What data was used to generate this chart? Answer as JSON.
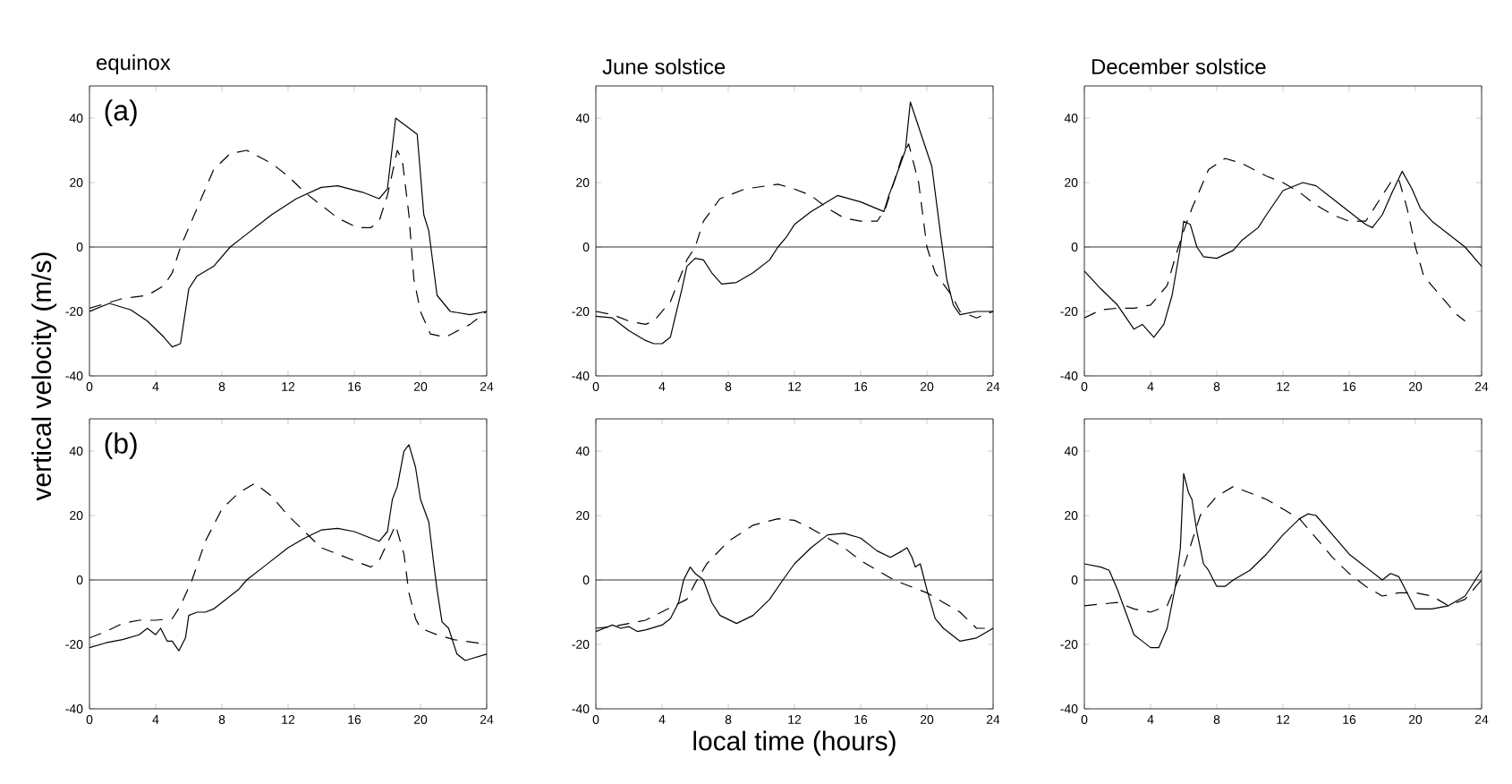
{
  "chart_data": [
    {
      "type": "line",
      "title": "equinox",
      "ylabel": "vertical velocity (m/s)",
      "annotations": [
        "(a)"
      ],
      "xlim": [
        0,
        24
      ],
      "ylim": [
        -40,
        50
      ],
      "xticks": [
        0,
        4,
        8,
        12,
        16,
        20,
        24
      ],
      "yticks": [
        -40,
        -20,
        0,
        20,
        40
      ],
      "ref_lines": [
        {
          "axis": "y",
          "value": 0
        }
      ],
      "series": [
        {
          "color": "#000000",
          "line_style": "solid",
          "x": [
            0,
            1.2,
            2.5,
            3.5,
            4.5,
            5.0,
            5.5,
            6.0,
            6.5,
            7.5,
            8.5,
            9.5,
            11,
            12.5,
            14,
            15,
            16.5,
            17.5,
            18,
            18.5,
            18.8,
            19.3,
            19.8,
            20.2,
            20.5,
            21,
            21.8,
            23,
            24
          ],
          "values": [
            -20,
            -17.5,
            -19.5,
            -23,
            -28,
            -31,
            -30,
            -13,
            -9,
            -6,
            0,
            4,
            10,
            15,
            18.5,
            19,
            17,
            15,
            18,
            40,
            null,
            null,
            35,
            10,
            5,
            -15,
            -20,
            -21,
            -20
          ]
        },
        {
          "color": "#000000",
          "line_style": "dashed",
          "x": [
            0,
            2,
            3.5,
            4.5,
            5.0,
            5.5,
            6.5,
            7.5,
            8.5,
            9.5,
            11,
            12,
            13,
            14,
            15,
            16.2,
            17,
            17.5,
            18,
            18.6,
            18.9,
            19.3,
            19.6,
            20,
            20.6,
            21.5,
            23,
            24
          ],
          "values": [
            -19,
            -16,
            -15,
            -12,
            -8,
            0,
            12,
            24,
            29,
            30,
            26,
            22,
            17,
            13,
            9,
            6,
            6,
            8,
            16,
            30,
            27,
            10,
            -10,
            -20,
            -27,
            -28,
            -24,
            -20
          ]
        }
      ]
    },
    {
      "type": "line",
      "title": "June solstice",
      "xlim": [
        0,
        24
      ],
      "ylim": [
        -40,
        50
      ],
      "xticks": [
        0,
        4,
        8,
        12,
        16,
        20,
        24
      ],
      "yticks": [
        -40,
        -20,
        0,
        20,
        40
      ],
      "ref_lines": [
        {
          "axis": "y",
          "value": 0
        }
      ],
      "series": [
        {
          "color": "#000000",
          "line_style": "solid",
          "x": [
            0,
            1,
            2,
            3,
            3.5,
            4,
            4.5,
            5.2,
            5.5,
            6,
            6.5,
            7,
            7.6,
            8.5,
            9.5,
            10.5,
            11,
            11.5,
            12,
            13,
            14.6,
            16,
            17.4,
            17.7,
            18,
            18.7,
            19,
            19.3,
            19.8,
            20.3,
            20.8,
            21.2,
            21.6,
            22,
            23,
            24
          ],
          "values": [
            -21.5,
            -22,
            -26,
            -29,
            -30,
            -30,
            -28,
            -13,
            -6,
            -3.5,
            -4,
            -8,
            -11.5,
            -11,
            -8,
            -4,
            0,
            3,
            7,
            11,
            16,
            14,
            11,
            16,
            20,
            30,
            45,
            null,
            null,
            25,
            5,
            -10,
            -18,
            -21,
            -20,
            -20
          ]
        },
        {
          "color": "#000000",
          "line_style": "dashed",
          "x": [
            0,
            1,
            2,
            3,
            3.5,
            4.5,
            5.5,
            6,
            6.5,
            7.5,
            9,
            11,
            12,
            13,
            14,
            15,
            16,
            17,
            17.5,
            18,
            18.5,
            18.9,
            19.5,
            20,
            20.5,
            21.5,
            22,
            23,
            24
          ],
          "values": [
            -20,
            -21,
            -23,
            -24,
            -23,
            -17,
            -4,
            0,
            8,
            15,
            18,
            19.5,
            18,
            16,
            12,
            9,
            8,
            8,
            12,
            20,
            28,
            32,
            20,
            0,
            -8,
            -15,
            -20,
            -22,
            -20
          ]
        }
      ]
    },
    {
      "type": "line",
      "title": "December solstice",
      "xlim": [
        0,
        24
      ],
      "ylim": [
        -40,
        50
      ],
      "xticks": [
        0,
        4,
        8,
        12,
        16,
        20,
        24
      ],
      "yticks": [
        -40,
        -20,
        0,
        20,
        40
      ],
      "ref_lines": [
        {
          "axis": "y",
          "value": 0
        }
      ],
      "series": [
        {
          "color": "#000000",
          "line_style": "solid",
          "x": [
            0,
            1,
            2,
            3,
            3.5,
            4.2,
            4.8,
            5.3,
            5.8,
            6.0,
            6.4,
            6.8,
            7.2,
            8,
            9,
            9.5,
            10.5,
            11,
            12,
            13.2,
            14,
            15,
            16,
            17,
            17.4,
            18,
            18.6,
            19.2,
            19.8,
            20.3,
            21,
            22,
            23,
            24
          ],
          "values": [
            -7.5,
            -13,
            -18,
            -25.5,
            -24,
            -28,
            -24,
            -15,
            0,
            8,
            7,
            0,
            -3,
            -3.5,
            -1,
            2,
            6,
            10,
            17.5,
            20,
            19,
            15,
            11,
            7,
            6,
            10,
            17,
            23.5,
            18,
            12,
            8,
            4,
            0,
            -6
          ]
        },
        {
          "color": "#000000",
          "line_style": "dashed",
          "x": [
            0,
            1,
            2,
            3,
            4,
            5,
            5.5,
            6,
            6.5,
            7.5,
            8.5,
            9.5,
            11,
            12,
            13,
            14,
            15,
            16,
            17,
            17.5,
            18,
            18.5,
            19,
            19.5,
            20,
            20.5,
            21.5,
            22.5,
            23
          ],
          "values": [
            -22,
            -19.5,
            -19,
            -19,
            -18,
            -12,
            -3,
            5,
            12,
            24,
            27.5,
            26,
            22,
            20,
            17,
            13,
            10,
            8,
            8,
            12,
            16,
            20,
            21,
            12,
            0,
            -9,
            -15,
            -21,
            -23
          ]
        }
      ]
    },
    {
      "type": "line",
      "annotations": [
        "(b)"
      ],
      "xlim": [
        0,
        24
      ],
      "ylim": [
        -40,
        50
      ],
      "xticks": [
        0,
        4,
        8,
        12,
        16,
        20,
        24
      ],
      "yticks": [
        -40,
        -20,
        0,
        20,
        40
      ],
      "ref_lines": [
        {
          "axis": "y",
          "value": 0
        }
      ],
      "series": [
        {
          "color": "#000000",
          "line_style": "solid",
          "x": [
            0,
            1,
            2,
            3,
            3.5,
            4,
            4.3,
            4.7,
            5,
            5.4,
            5.8,
            6,
            6.5,
            7,
            7.5,
            8,
            9,
            9.5,
            10.5,
            12,
            13,
            14,
            15,
            16,
            17,
            17.5,
            18,
            18.3,
            18.6,
            19,
            19.3,
            19.7,
            20,
            20.5,
            20.8,
            21,
            21.3,
            21.7,
            22.2,
            22.7,
            24
          ],
          "values": [
            -21,
            -19.5,
            -18.5,
            -17,
            -15,
            -17,
            -15,
            -19,
            -19,
            -22,
            -18,
            -11,
            -10,
            -10,
            -9,
            -7,
            -3,
            0,
            4,
            10,
            13,
            15.5,
            16,
            15,
            13,
            12,
            15,
            25,
            29,
            40,
            42,
            35,
            25,
            18,
            5,
            -3,
            -13,
            -15,
            -23,
            -25,
            -23
          ]
        },
        {
          "color": "#000000",
          "line_style": "dashed",
          "x": [
            0,
            1,
            2,
            3,
            4,
            5,
            5.5,
            6.2,
            7,
            8,
            9,
            10,
            11,
            12,
            13,
            14,
            15,
            16,
            17,
            17.5,
            18.5,
            19,
            19.3,
            19.7,
            20,
            21,
            22,
            24
          ],
          "values": [
            -18,
            -16,
            -13.5,
            -12.5,
            -12.5,
            -12,
            -8,
            0,
            12,
            22,
            27,
            30,
            26,
            20,
            15,
            10,
            8,
            6,
            4,
            6,
            17,
            8,
            -4,
            -12,
            -15,
            -17,
            -18.5,
            -20
          ]
        }
      ]
    },
    {
      "type": "line",
      "xlabel": "local time (hours)",
      "xlim": [
        0,
        24
      ],
      "ylim": [
        -40,
        50
      ],
      "xticks": [
        0,
        4,
        8,
        12,
        16,
        20,
        24
      ],
      "yticks": [
        -40,
        -20,
        0,
        20,
        40
      ],
      "ref_lines": [
        {
          "axis": "y",
          "value": 0
        }
      ],
      "series": [
        {
          "color": "#000000",
          "line_style": "solid",
          "x": [
            0,
            0.5,
            1,
            1.5,
            2,
            2.5,
            3,
            4,
            4.5,
            5,
            5.3,
            5.7,
            6,
            6.5,
            7,
            7.5,
            8.5,
            9.5,
            10.5,
            11.3,
            12,
            13,
            14,
            15,
            16,
            17,
            17.8,
            18.5,
            18.8,
            19.1,
            19.3,
            19.6,
            20,
            20.5,
            21,
            22,
            23,
            24
          ],
          "values": [
            -16,
            -15,
            -14,
            -15,
            -14.5,
            -16,
            -15.5,
            -14,
            -12,
            -7,
            0,
            4,
            2,
            0,
            -7,
            -11,
            -13.5,
            -11,
            -6,
            0,
            5,
            10,
            14,
            14.5,
            13,
            9,
            7,
            9,
            10,
            7,
            4,
            5,
            -3,
            -12,
            -15,
            -19,
            -18,
            -15
          ]
        },
        {
          "color": "#000000",
          "line_style": "dashed",
          "x": [
            0,
            1,
            2,
            3,
            5.5,
            6,
            6.7,
            8,
            9.5,
            11,
            12,
            13,
            14,
            15,
            16,
            17,
            18,
            19,
            20,
            21,
            22,
            23,
            24
          ],
          "values": [
            -15,
            -14.5,
            -13.5,
            -12.5,
            -6,
            -1,
            5,
            12,
            17,
            19,
            18.5,
            16,
            13,
            10,
            6,
            3,
            0,
            -2,
            -4,
            -7,
            -10,
            -15,
            -15
          ]
        }
      ]
    },
    {
      "type": "line",
      "xlim": [
        0,
        24
      ],
      "ylim": [
        -40,
        50
      ],
      "xticks": [
        0,
        4,
        8,
        12,
        16,
        20,
        24
      ],
      "yticks": [
        -40,
        -20,
        0,
        20,
        40
      ],
      "ref_lines": [
        {
          "axis": "y",
          "value": 0
        }
      ],
      "series": [
        {
          "color": "#000000",
          "line_style": "solid",
          "x": [
            0,
            1,
            1.5,
            2,
            2.5,
            3,
            3.5,
            4,
            4.5,
            5,
            5.5,
            5.8,
            6,
            6.3,
            6.5,
            6.8,
            7.2,
            7.5,
            8,
            8.5,
            9,
            10,
            11,
            12,
            13,
            13.5,
            14,
            15,
            16,
            17,
            18,
            18.5,
            19,
            20,
            21,
            22,
            23,
            24
          ],
          "values": [
            5,
            4,
            3,
            -3,
            -10,
            -17,
            -19,
            -21,
            -21,
            -15,
            -2,
            10,
            33,
            27,
            25,
            15,
            5,
            3,
            -2,
            -2,
            0,
            3,
            8,
            14,
            19,
            20.5,
            20,
            14,
            8,
            4,
            0,
            2,
            1,
            -9,
            -9,
            -8,
            -5,
            3
          ]
        },
        {
          "color": "#000000",
          "line_style": "dashed",
          "x": [
            0,
            1,
            2,
            3,
            4,
            5,
            5.5,
            6,
            6.5,
            7,
            8,
            9,
            10,
            11,
            12,
            13,
            14,
            15,
            16,
            17,
            18,
            19,
            20,
            21,
            22,
            23,
            24
          ],
          "values": [
            -8,
            -7.5,
            -7,
            -9,
            -10,
            -8,
            -2,
            4,
            12,
            20,
            26,
            29,
            27,
            25,
            22,
            19,
            13,
            7,
            2,
            -2,
            -5,
            -4,
            -4,
            -5,
            -8,
            -6,
            0
          ]
        }
      ]
    }
  ]
}
